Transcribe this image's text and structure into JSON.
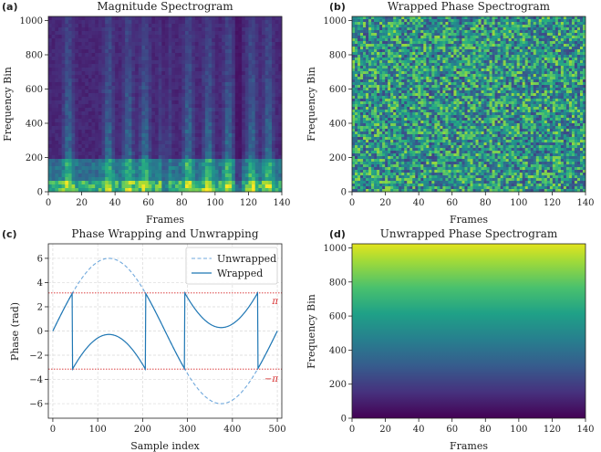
{
  "chart_data": [
    {
      "panel_label": "(a)",
      "type": "heatmap",
      "title": "Magnitude Spectrogram",
      "xlabel": "Frames",
      "ylabel": "Frequency Bin",
      "xlim": [
        0,
        140
      ],
      "ylim": [
        0,
        1024
      ],
      "xticks": [
        "0",
        "20",
        "40",
        "60",
        "80",
        "100",
        "120",
        "140"
      ],
      "yticks": [
        "0",
        "200",
        "400",
        "600",
        "800",
        "1000"
      ],
      "colormap": "viridis",
      "description_values": {
        "bright_low_frequency_band_bins": [
          0,
          60
        ],
        "bright_frame_columns": [
          12,
          36,
          48,
          58,
          70,
          84,
          96,
          108,
          122,
          132
        ],
        "dark_frame_columns": [
          70,
          114
        ]
      }
    },
    {
      "panel_label": "(b)",
      "type": "heatmap",
      "title": "Wrapped Phase Spectrogram",
      "xlabel": "Frames",
      "ylabel": "Frequency Bin",
      "xlim": [
        0,
        140
      ],
      "ylim": [
        0,
        1024
      ],
      "xticks": [
        "0",
        "20",
        "40",
        "60",
        "80",
        "100",
        "120",
        "140"
      ],
      "yticks": [
        "0",
        "200",
        "400",
        "600",
        "800",
        "1000"
      ],
      "colormap": "viridis",
      "value_range": [
        -3.14159,
        3.14159
      ],
      "pattern": "random"
    },
    {
      "panel_label": "(c)",
      "type": "line",
      "title": "Phase Wrapping and Unwrapping",
      "xlabel": "Sample index",
      "ylabel": "Phase (rad)",
      "xlim": [
        -10,
        510
      ],
      "ylim": [
        -7.2,
        7.2
      ],
      "xticks": [
        0,
        100,
        200,
        300,
        400,
        500
      ],
      "yticks": [
        -6,
        -4,
        -2,
        0,
        2,
        4,
        6
      ],
      "grid": true,
      "legend_position": "top-right",
      "series": [
        {
          "name": "Unwrapped",
          "style": "dashed",
          "color": "#6fa8dc",
          "formula": "6*sin(2*pi*x/500)",
          "x_range": [
            0,
            500
          ]
        },
        {
          "name": "Wrapped",
          "style": "solid",
          "color": "#1f77b4",
          "formula": "wrap(6*sin(2*pi*x/500)) to [-pi, pi]",
          "x_range": [
            0,
            500
          ]
        }
      ],
      "reference_lines": [
        {
          "y": 3.14159,
          "label": "π",
          "color": "#d62728"
        },
        {
          "y": -3.14159,
          "label": "−π",
          "color": "#d62728"
        }
      ]
    },
    {
      "panel_label": "(d)",
      "type": "heatmap",
      "title": "Unwrapped Phase Spectrogram",
      "xlabel": "Frames",
      "ylabel": "Frequency Bin",
      "xlim": [
        0,
        140
      ],
      "ylim": [
        0,
        1024
      ],
      "xticks": [
        "0",
        "20",
        "40",
        "60",
        "80",
        "100",
        "120",
        "140"
      ],
      "yticks": [
        "0",
        "200",
        "400",
        "600",
        "800",
        "1000"
      ],
      "colormap": "viridis",
      "pattern": "vertical gradient increasing with frequency bin"
    }
  ]
}
